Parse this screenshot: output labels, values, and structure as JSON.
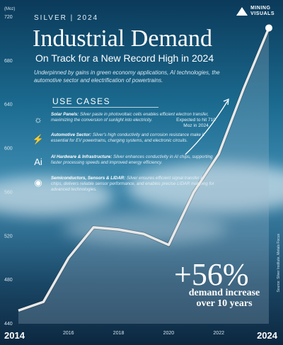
{
  "header": {
    "kicker": "SILVER | 2024",
    "title": "Industrial Demand",
    "subtitle": "On Track for a New Record High in 2024",
    "description": "Underpinned by gains in green economy applications, AI technologies, the automotive sector and electrification of powertrains.",
    "brand_line1": "MINING",
    "brand_line2": "VISUALS"
  },
  "use_cases": {
    "heading": "USE CASES",
    "items": [
      {
        "icon": "sun-icon",
        "glyph": "☼",
        "label": "Solar Panels:",
        "text": "Silver paste in photovoltaic cells enables efficient electron transfer, maximizing the conversion of sunlight into electricity."
      },
      {
        "icon": "car-charging-icon",
        "glyph": "⚡",
        "label": "Automotive Sector:",
        "text": "Silver's high conductivity and corrosion resistance make it essential for EV powertrains, charging systems, and electronic circuits."
      },
      {
        "icon": "ai-chip-icon",
        "glyph": "Ai",
        "label": "AI Hardware & Infrastructure:",
        "text": "Silver enhances conductivity in AI chips, supporting faster processing speeds and improved energy efficiency."
      },
      {
        "icon": "wireless-signal-icon",
        "glyph": "◉",
        "label": "Semiconductors, Sensors & LIDAR:",
        "text": "Silver ensures efficient signal transfer in chips, delivers reliable sensor performance, and enables precise LIDAR mapping for advanced technologies."
      }
    ]
  },
  "annotation": "Expected to hit 710 Moz in 2024",
  "callout": {
    "value": "+56%",
    "caption": "demand increase over 10 years"
  },
  "credit": "Source: Silver Institute, Metals Focus",
  "chart_data": {
    "type": "line",
    "y_unit": "(Moz)",
    "x": [
      2014,
      2015,
      2016,
      2017,
      2018,
      2019,
      2020,
      2021,
      2022,
      2023,
      2024
    ],
    "series": [
      {
        "values": [
          452,
          460,
          500,
          528,
          526,
          522,
          512,
          560,
          595,
          655,
          710
        ]
      }
    ],
    "ylim": [
      440,
      720
    ],
    "y_ticks": [
      440,
      480,
      520,
      560,
      600,
      640,
      680,
      720
    ],
    "x_tick_labels": [
      "2016",
      "2018",
      "2020",
      "2022"
    ],
    "x_tick_values": [
      2016,
      2018,
      2020,
      2022
    ],
    "x_end_labels": [
      "2014",
      "2024"
    ],
    "colors": {
      "line": "#e8e8e8",
      "marker": "#ffffff"
    }
  }
}
